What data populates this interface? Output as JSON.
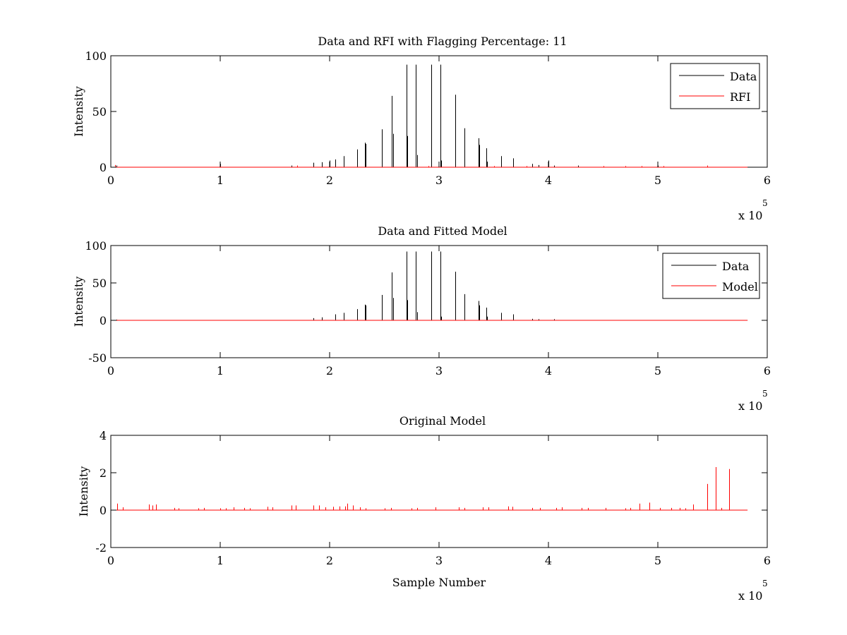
{
  "figure": {
    "background": "#ffffff",
    "data_color": "#000000",
    "rfi_color": "#ff0000"
  },
  "chart_data": [
    {
      "type": "line",
      "title": "Data and RFI with Flagging Percentage: 11",
      "xlabel": "",
      "ylabel": "Intensity",
      "xlim": [
        0,
        600000
      ],
      "ylim": [
        0,
        100
      ],
      "xticks": [
        0,
        1,
        2,
        3,
        4,
        5,
        6
      ],
      "yticks": [
        0,
        50,
        100
      ],
      "x_exponent_label": "x 10",
      "x_exponent_power": "5",
      "legend": {
        "position": "top-right",
        "entries": [
          "Data",
          "RFI"
        ]
      },
      "series": [
        {
          "name": "Data",
          "color": "#000000",
          "baseline": 0,
          "x_end": 582000,
          "spikes": [
            [
              5000,
              1.5
            ],
            [
              100000,
              3
            ],
            [
              165000,
              1.5
            ],
            [
              185000,
              4
            ],
            [
              193000,
              4.5
            ],
            [
              200000,
              6
            ],
            [
              205000,
              7
            ],
            [
              213000,
              10
            ],
            [
              225000,
              16
            ],
            [
              232000,
              22
            ],
            [
              233000,
              21
            ],
            [
              248000,
              34
            ],
            [
              257000,
              64
            ],
            [
              258000,
              30
            ],
            [
              270000,
              92
            ],
            [
              271000,
              28
            ],
            [
              279000,
              92
            ],
            [
              280000,
              11
            ],
            [
              293000,
              92
            ],
            [
              301000,
              92
            ],
            [
              302000,
              6
            ],
            [
              315000,
              65
            ],
            [
              323000,
              35
            ],
            [
              336000,
              26
            ],
            [
              337000,
              20
            ],
            [
              343000,
              17
            ],
            [
              344000,
              5
            ],
            [
              357000,
              10
            ],
            [
              368000,
              8
            ],
            [
              385000,
              3
            ],
            [
              391000,
              2
            ],
            [
              400000,
              6
            ],
            [
              405000,
              1.5
            ],
            [
              427000,
              1.5
            ],
            [
              500000,
              1.5
            ]
          ]
        },
        {
          "name": "RFI",
          "color": "#ff0000",
          "baseline": 0,
          "x_end": 582000,
          "spikes": [
            [
              4000,
              2
            ],
            [
              100000,
              1
            ],
            [
              170000,
              1.5
            ],
            [
              290000,
              1
            ],
            [
              350000,
              1
            ],
            [
              380000,
              1
            ],
            [
              450000,
              1
            ],
            [
              470000,
              1
            ],
            [
              485000,
              1
            ],
            [
              505000,
              1
            ],
            [
              545000,
              1.5
            ]
          ]
        }
      ]
    },
    {
      "type": "line",
      "title": "Data and Fitted Model",
      "xlabel": "",
      "ylabel": "Intensity",
      "xlim": [
        0,
        600000
      ],
      "ylim": [
        -50,
        100
      ],
      "xticks": [
        0,
        1,
        2,
        3,
        4,
        5,
        6
      ],
      "yticks": [
        -50,
        0,
        50,
        100
      ],
      "x_exponent_label": "x 10",
      "x_exponent_power": "5",
      "legend": {
        "position": "top-right",
        "entries": [
          "Data",
          "Model"
        ]
      },
      "series": [
        {
          "name": "Data",
          "color": "#000000",
          "baseline": 0,
          "x_end": 582000,
          "spikes": [
            [
              5000,
              1
            ],
            [
              185000,
              3
            ],
            [
              193000,
              4
            ],
            [
              205000,
              8
            ],
            [
              213000,
              10
            ],
            [
              225000,
              15
            ],
            [
              232000,
              21
            ],
            [
              233000,
              20
            ],
            [
              248000,
              34
            ],
            [
              257000,
              64
            ],
            [
              258000,
              30
            ],
            [
              270000,
              92
            ],
            [
              271000,
              27
            ],
            [
              279000,
              92
            ],
            [
              280000,
              11
            ],
            [
              293000,
              92
            ],
            [
              301000,
              92
            ],
            [
              302000,
              5
            ],
            [
              315000,
              65
            ],
            [
              323000,
              35
            ],
            [
              336000,
              26
            ],
            [
              337000,
              20
            ],
            [
              343000,
              17
            ],
            [
              344000,
              5
            ],
            [
              357000,
              10
            ],
            [
              368000,
              8
            ],
            [
              385000,
              2
            ],
            [
              391000,
              1.5
            ],
            [
              405000,
              1.5
            ]
          ]
        },
        {
          "name": "Model",
          "color": "#ff0000",
          "baseline": 0,
          "x_end": 582000,
          "spikes": [
            [
              4000,
              0.5
            ]
          ]
        }
      ]
    },
    {
      "type": "line",
      "title": "Original Model",
      "xlabel": "Sample Number",
      "ylabel": "Intensity",
      "xlim": [
        0,
        600000
      ],
      "ylim": [
        -2,
        4
      ],
      "xticks": [
        0,
        1,
        2,
        3,
        4,
        5,
        6
      ],
      "yticks": [
        -2,
        0,
        2,
        4
      ],
      "x_exponent_label": "x 10",
      "x_exponent_power": "5",
      "legend": null,
      "series": [
        {
          "name": "Model",
          "color": "#ff0000",
          "baseline": 0,
          "x_end": 582000,
          "spikes": [
            [
              6000,
              0.35
            ],
            [
              11000,
              0.15
            ],
            [
              35000,
              0.3
            ],
            [
              38000,
              0.25
            ],
            [
              41000,
              0.3
            ],
            [
              58000,
              0.12
            ],
            [
              62000,
              0.1
            ],
            [
              80000,
              0.1
            ],
            [
              85000,
              0.12
            ],
            [
              100000,
              0.1
            ],
            [
              105000,
              0.1
            ],
            [
              112000,
              0.15
            ],
            [
              122000,
              0.12
            ],
            [
              127000,
              0.1
            ],
            [
              143000,
              0.18
            ],
            [
              148000,
              0.15
            ],
            [
              165000,
              0.25
            ],
            [
              169000,
              0.25
            ],
            [
              185000,
              0.25
            ],
            [
              190000,
              0.25
            ],
            [
              196000,
              0.15
            ],
            [
              203000,
              0.18
            ],
            [
              209000,
              0.2
            ],
            [
              214000,
              0.2
            ],
            [
              216000,
              0.35
            ],
            [
              221000,
              0.25
            ],
            [
              228000,
              0.15
            ],
            [
              233000,
              0.1
            ],
            [
              250000,
              0.1
            ],
            [
              256000,
              0.12
            ],
            [
              275000,
              0.1
            ],
            [
              280000,
              0.12
            ],
            [
              297000,
              0.15
            ],
            [
              318000,
              0.15
            ],
            [
              323000,
              0.12
            ],
            [
              340000,
              0.15
            ],
            [
              345000,
              0.15
            ],
            [
              363000,
              0.2
            ],
            [
              367000,
              0.18
            ],
            [
              385000,
              0.12
            ],
            [
              392000,
              0.12
            ],
            [
              407000,
              0.12
            ],
            [
              412000,
              0.15
            ],
            [
              430000,
              0.12
            ],
            [
              436000,
              0.12
            ],
            [
              452000,
              0.12
            ],
            [
              470000,
              0.1
            ],
            [
              475000,
              0.12
            ],
            [
              483000,
              0.35
            ],
            [
              492000,
              0.4
            ],
            [
              502000,
              0.12
            ],
            [
              512000,
              0.12
            ],
            [
              520000,
              0.12
            ],
            [
              525000,
              0.1
            ],
            [
              532000,
              0.3
            ],
            [
              545000,
              1.4
            ],
            [
              553000,
              2.3
            ],
            [
              558000,
              0.12
            ],
            [
              565000,
              2.2
            ]
          ]
        }
      ]
    }
  ]
}
